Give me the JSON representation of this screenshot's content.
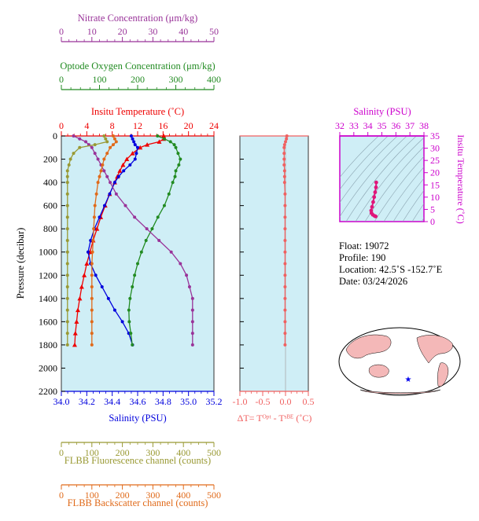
{
  "colors": {
    "nitrate": "#993399",
    "oxygen": "#228B22",
    "temperature": "#ee0000",
    "salinity": "#0000dd",
    "fluorescence": "#999933",
    "backscatter": "#e06a1a",
    "delta": "#f06060",
    "ts_axis": "#cc00cc",
    "plot_bg": "#cfeef6",
    "land": "#f4b8b8"
  },
  "axes": {
    "nitrate": {
      "title": "Nitrate Concentration (μm/kg)",
      "ticks": [
        "0",
        "10",
        "20",
        "30",
        "40",
        "50"
      ],
      "range": [
        0,
        50
      ]
    },
    "oxygen": {
      "title": "Optode Oxygen Concentration (μm/kg)",
      "ticks": [
        "0",
        "100",
        "200",
        "300",
        "400"
      ],
      "range": [
        0,
        400
      ]
    },
    "temperature": {
      "title": "Insitu Temperature (˚C)",
      "ticks": [
        "0",
        "4",
        "8",
        "12",
        "16",
        "20",
        "24"
      ],
      "range": [
        0,
        24
      ]
    },
    "salinity": {
      "title": "Salinity (PSU)",
      "ticks": [
        "34.0",
        "34.2",
        "34.4",
        "34.6",
        "34.8",
        "35.0",
        "35.2"
      ],
      "range": [
        34.0,
        35.2
      ]
    },
    "pressure": {
      "title": "Pressure (decibar)",
      "ticks": [
        "0",
        "200",
        "400",
        "600",
        "800",
        "1000",
        "1200",
        "1400",
        "1600",
        "1800",
        "2000",
        "2200"
      ],
      "range": [
        0,
        2200
      ]
    },
    "delta": {
      "title": "ΔT= Tᴼᵖᵗ - Tˢᴮᴱ (˚C)",
      "ticks": [
        "-1.0",
        "-0.5",
        "0.0",
        "0.5"
      ],
      "range": [
        -1.0,
        0.5
      ]
    },
    "fluorescence": {
      "title": "FLBB Fluorescence channel (counts)",
      "ticks": [
        "0",
        "100",
        "200",
        "300",
        "400",
        "500"
      ],
      "range": [
        0,
        500
      ]
    },
    "backscatter": {
      "title": "FLBB Backscatter channel (counts)",
      "ticks": [
        "0",
        "100",
        "200",
        "300",
        "400",
        "500"
      ],
      "range": [
        0,
        500
      ]
    },
    "ts_salinity": {
      "title": "Salinity (PSU)",
      "ticks": [
        "32",
        "33",
        "34",
        "35",
        "36",
        "37",
        "38"
      ],
      "range": [
        32,
        38
      ]
    },
    "ts_temperature": {
      "title": "Insitu Temperature (˚C)",
      "ticks": [
        "0",
        "5",
        "10",
        "15",
        "20",
        "25",
        "30",
        "35"
      ],
      "range": [
        0,
        35
      ]
    }
  },
  "info": {
    "float": "Float:  19072",
    "profile": "Profile:  190",
    "location": "Location:  42.5˚S  -152.7˚E",
    "date": "Date:  03/24/2026"
  },
  "chart_data": [
    {
      "type": "line",
      "pressure": [
        0,
        25,
        50,
        75,
        100,
        150,
        200,
        250,
        300,
        350,
        400,
        500,
        600,
        700,
        800,
        900,
        1000,
        1100,
        1200,
        1300,
        1400,
        1500,
        1600,
        1700,
        1800
      ],
      "series": [
        {
          "key": "temperature",
          "unit": "˚C",
          "values": [
            16.1,
            16.1,
            15.4,
            13.5,
            12.4,
            11.2,
            10.3,
            9.7,
            9.2,
            8.8,
            8.4,
            7.6,
            6.9,
            6.2,
            5.6,
            5.0,
            4.5,
            4.0,
            3.6,
            3.2,
            2.9,
            2.6,
            2.4,
            2.2,
            2.1
          ]
        },
        {
          "key": "salinity",
          "unit": "PSU",
          "values": [
            34.55,
            34.56,
            34.57,
            34.58,
            34.6,
            34.59,
            34.58,
            34.54,
            34.49,
            34.45,
            34.42,
            34.38,
            34.34,
            34.3,
            34.26,
            34.23,
            34.21,
            34.23,
            34.27,
            34.32,
            34.37,
            34.42,
            34.48,
            34.53,
            34.56
          ]
        },
        {
          "key": "oxygen",
          "unit": "μm/kg",
          "values": [
            252,
            270,
            286,
            296,
            300,
            306,
            312,
            308,
            300,
            298,
            292,
            282,
            270,
            253,
            238,
            222,
            210,
            200,
            192,
            186,
            180,
            177,
            178,
            182,
            186
          ]
        },
        {
          "key": "nitrate",
          "unit": "μm/kg",
          "values": [
            4,
            6,
            8,
            9,
            10,
            11,
            12,
            13,
            14,
            15,
            16,
            18,
            21,
            24,
            28,
            32,
            36,
            39,
            41,
            42,
            43,
            43,
            43,
            43,
            43
          ]
        },
        {
          "key": "fluorescence",
          "unit": "counts",
          "values": [
            140,
            145,
            150,
            110,
            60,
            40,
            30,
            25,
            20,
            20,
            20,
            20,
            20,
            20,
            20,
            20,
            20,
            20,
            20,
            20,
            20,
            20,
            20,
            20,
            20
          ]
        },
        {
          "key": "backscatter",
          "unit": "counts",
          "values": [
            170,
            175,
            180,
            170,
            160,
            150,
            140,
            135,
            130,
            125,
            120,
            115,
            110,
            108,
            106,
            104,
            102,
            100,
            100,
            100,
            100,
            100,
            100,
            100,
            100
          ]
        },
        {
          "key": "delta",
          "unit": "˚C",
          "values": [
            0.03,
            0.02,
            0.0,
            -0.02,
            -0.03,
            -0.03,
            -0.03,
            -0.03,
            -0.02,
            -0.02,
            -0.02,
            -0.01,
            -0.01,
            -0.01,
            -0.01,
            -0.01,
            -0.01,
            -0.01,
            -0.01,
            -0.01,
            -0.01,
            -0.01,
            -0.01,
            -0.01,
            -0.01
          ]
        }
      ]
    },
    {
      "type": "scatter",
      "x_key": "salinity",
      "y_key": "temperature",
      "points": [
        [
          34.6,
          16.0
        ],
        [
          34.58,
          14.0
        ],
        [
          34.52,
          12.0
        ],
        [
          34.45,
          10.0
        ],
        [
          34.38,
          8.0
        ],
        [
          34.3,
          6.0
        ],
        [
          34.24,
          4.5
        ],
        [
          34.26,
          3.5
        ],
        [
          34.35,
          2.8
        ],
        [
          34.48,
          2.3
        ],
        [
          34.56,
          2.1
        ]
      ]
    }
  ]
}
